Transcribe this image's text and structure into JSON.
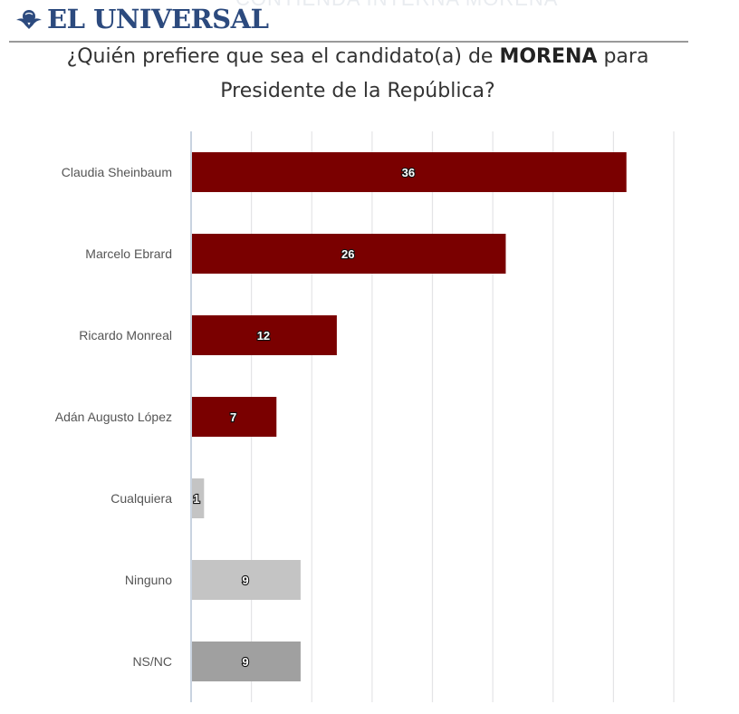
{
  "header": {
    "brand": "EL UNIVERSAL",
    "logo_icon": "eagle-globe-icon",
    "watermark": "CONTIENDA INTERNA MORENA"
  },
  "title": {
    "part1": "¿Quién prefiere que sea el candidato(a) de ",
    "bold": "MORENA",
    "part2": " para",
    "line2": "Presidente de la República?"
  },
  "chart_data": {
    "type": "bar",
    "orientation": "horizontal",
    "title": "¿Quién prefiere que sea el candidato(a) de MORENA para Presidente de la República?",
    "categories": [
      "Claudia Sheinbaum",
      "Marcelo Ebrard",
      "Ricardo Monreal",
      "Adán Augusto López",
      "Cualquiera",
      "Ninguno",
      "NS/NC"
    ],
    "values": [
      36,
      26,
      12,
      7,
      1,
      9,
      9
    ],
    "value_labels": [
      "36",
      "26",
      "12",
      "7",
      "1",
      "9",
      "9"
    ],
    "colors": [
      "#7a0000",
      "#7a0000",
      "#7a0000",
      "#7a0000",
      "#c4c4c4",
      "#c4c4c4",
      "#a0a0a0"
    ],
    "xlim": [
      0,
      40
    ],
    "grid_step": 5,
    "grid": true,
    "xlabel": "",
    "ylabel": "",
    "legend": "none"
  }
}
